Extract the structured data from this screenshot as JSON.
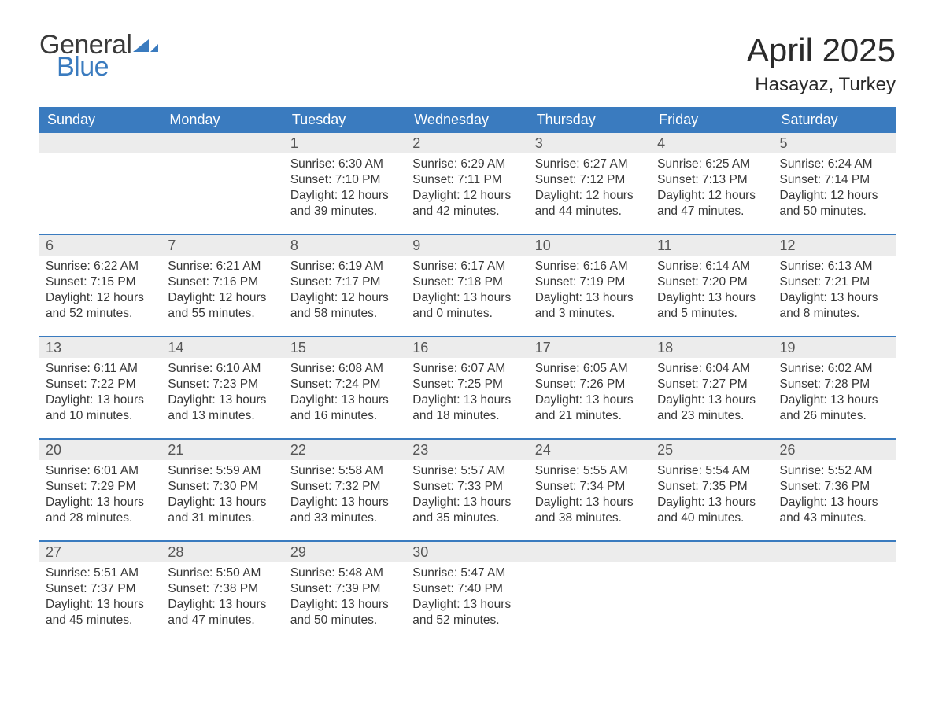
{
  "logo": {
    "word1": "General",
    "word2": "Blue",
    "icon_color": "#3a7bbf"
  },
  "title": "April 2025",
  "location": "Hasayaz, Turkey",
  "colors": {
    "header_bg": "#3a7bbf",
    "header_text": "#ffffff",
    "daynum_bg": "#ececec",
    "daynum_text": "#555555",
    "body_text": "#383838",
    "row_border": "#3a7bbf",
    "page_bg": "#ffffff",
    "logo_gray": "#3a3a3a"
  },
  "typography": {
    "title_fontsize": 42,
    "location_fontsize": 24,
    "dow_fontsize": 18,
    "daynum_fontsize": 18,
    "body_fontsize": 15.5,
    "logo_fontsize": 34
  },
  "days_of_week": [
    "Sunday",
    "Monday",
    "Tuesday",
    "Wednesday",
    "Thursday",
    "Friday",
    "Saturday"
  ],
  "labels": {
    "sunrise": "Sunrise:",
    "sunset": "Sunset:",
    "daylight": "Daylight:",
    "hours": "hours",
    "and": "and",
    "minutes": "minutes."
  },
  "weeks": [
    [
      {
        "day": null
      },
      {
        "day": null
      },
      {
        "day": 1,
        "sunrise": "6:30 AM",
        "sunset": "7:10 PM",
        "dl_h": 12,
        "dl_m": 39
      },
      {
        "day": 2,
        "sunrise": "6:29 AM",
        "sunset": "7:11 PM",
        "dl_h": 12,
        "dl_m": 42
      },
      {
        "day": 3,
        "sunrise": "6:27 AM",
        "sunset": "7:12 PM",
        "dl_h": 12,
        "dl_m": 44
      },
      {
        "day": 4,
        "sunrise": "6:25 AM",
        "sunset": "7:13 PM",
        "dl_h": 12,
        "dl_m": 47
      },
      {
        "day": 5,
        "sunrise": "6:24 AM",
        "sunset": "7:14 PM",
        "dl_h": 12,
        "dl_m": 50
      }
    ],
    [
      {
        "day": 6,
        "sunrise": "6:22 AM",
        "sunset": "7:15 PM",
        "dl_h": 12,
        "dl_m": 52
      },
      {
        "day": 7,
        "sunrise": "6:21 AM",
        "sunset": "7:16 PM",
        "dl_h": 12,
        "dl_m": 55
      },
      {
        "day": 8,
        "sunrise": "6:19 AM",
        "sunset": "7:17 PM",
        "dl_h": 12,
        "dl_m": 58
      },
      {
        "day": 9,
        "sunrise": "6:17 AM",
        "sunset": "7:18 PM",
        "dl_h": 13,
        "dl_m": 0
      },
      {
        "day": 10,
        "sunrise": "6:16 AM",
        "sunset": "7:19 PM",
        "dl_h": 13,
        "dl_m": 3
      },
      {
        "day": 11,
        "sunrise": "6:14 AM",
        "sunset": "7:20 PM",
        "dl_h": 13,
        "dl_m": 5
      },
      {
        "day": 12,
        "sunrise": "6:13 AM",
        "sunset": "7:21 PM",
        "dl_h": 13,
        "dl_m": 8
      }
    ],
    [
      {
        "day": 13,
        "sunrise": "6:11 AM",
        "sunset": "7:22 PM",
        "dl_h": 13,
        "dl_m": 10
      },
      {
        "day": 14,
        "sunrise": "6:10 AM",
        "sunset": "7:23 PM",
        "dl_h": 13,
        "dl_m": 13
      },
      {
        "day": 15,
        "sunrise": "6:08 AM",
        "sunset": "7:24 PM",
        "dl_h": 13,
        "dl_m": 16
      },
      {
        "day": 16,
        "sunrise": "6:07 AM",
        "sunset": "7:25 PM",
        "dl_h": 13,
        "dl_m": 18
      },
      {
        "day": 17,
        "sunrise": "6:05 AM",
        "sunset": "7:26 PM",
        "dl_h": 13,
        "dl_m": 21
      },
      {
        "day": 18,
        "sunrise": "6:04 AM",
        "sunset": "7:27 PM",
        "dl_h": 13,
        "dl_m": 23
      },
      {
        "day": 19,
        "sunrise": "6:02 AM",
        "sunset": "7:28 PM",
        "dl_h": 13,
        "dl_m": 26
      }
    ],
    [
      {
        "day": 20,
        "sunrise": "6:01 AM",
        "sunset": "7:29 PM",
        "dl_h": 13,
        "dl_m": 28
      },
      {
        "day": 21,
        "sunrise": "5:59 AM",
        "sunset": "7:30 PM",
        "dl_h": 13,
        "dl_m": 31
      },
      {
        "day": 22,
        "sunrise": "5:58 AM",
        "sunset": "7:32 PM",
        "dl_h": 13,
        "dl_m": 33
      },
      {
        "day": 23,
        "sunrise": "5:57 AM",
        "sunset": "7:33 PM",
        "dl_h": 13,
        "dl_m": 35
      },
      {
        "day": 24,
        "sunrise": "5:55 AM",
        "sunset": "7:34 PM",
        "dl_h": 13,
        "dl_m": 38
      },
      {
        "day": 25,
        "sunrise": "5:54 AM",
        "sunset": "7:35 PM",
        "dl_h": 13,
        "dl_m": 40
      },
      {
        "day": 26,
        "sunrise": "5:52 AM",
        "sunset": "7:36 PM",
        "dl_h": 13,
        "dl_m": 43
      }
    ],
    [
      {
        "day": 27,
        "sunrise": "5:51 AM",
        "sunset": "7:37 PM",
        "dl_h": 13,
        "dl_m": 45
      },
      {
        "day": 28,
        "sunrise": "5:50 AM",
        "sunset": "7:38 PM",
        "dl_h": 13,
        "dl_m": 47
      },
      {
        "day": 29,
        "sunrise": "5:48 AM",
        "sunset": "7:39 PM",
        "dl_h": 13,
        "dl_m": 50
      },
      {
        "day": 30,
        "sunrise": "5:47 AM",
        "sunset": "7:40 PM",
        "dl_h": 13,
        "dl_m": 52
      },
      {
        "day": null
      },
      {
        "day": null
      },
      {
        "day": null
      }
    ]
  ]
}
